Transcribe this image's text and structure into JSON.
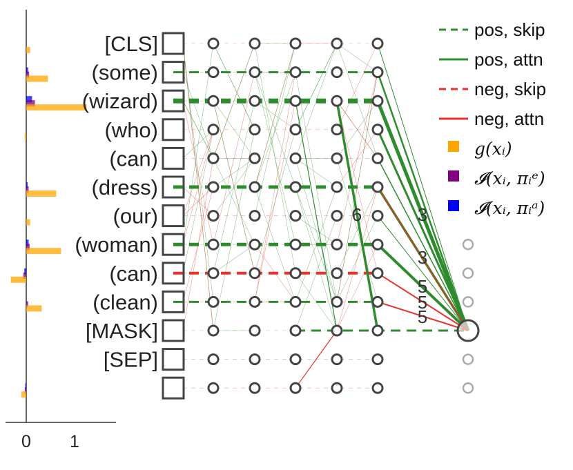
{
  "tokens": [
    "[CLS]",
    "(some)",
    "(wizard)",
    "(who)",
    "(can)",
    "(dress)",
    "(our)",
    "(woman)",
    "(can)",
    "(clean)",
    "[MASK]",
    "[SEP]",
    ""
  ],
  "bar_axis": {
    "ticks": [
      "0",
      "1"
    ]
  },
  "bars": [
    {
      "g": 0.08,
      "e": 0.0,
      "a": 0.0
    },
    {
      "g": 0.45,
      "e": 0.06,
      "a": 0.04
    },
    {
      "g": 1.25,
      "e": 0.18,
      "a": 0.12
    },
    {
      "g": -0.03,
      "e": 0.0,
      "a": 0.0
    },
    {
      "g": 0.0,
      "e": 0.0,
      "a": 0.0
    },
    {
      "g": 0.62,
      "e": 0.05,
      "a": 0.03
    },
    {
      "g": 0.08,
      "e": 0.0,
      "a": 0.0
    },
    {
      "g": 0.72,
      "e": 0.07,
      "a": 0.05
    },
    {
      "g": -0.32,
      "e": -0.06,
      "a": -0.04
    },
    {
      "g": 0.32,
      "e": 0.04,
      "a": 0.0
    },
    {
      "g": 0.0,
      "e": 0.0,
      "a": 0.0
    },
    {
      "g": 0.0,
      "e": 0.0,
      "a": 0.0
    },
    {
      "g": -0.1,
      "e": -0.03,
      "a": -0.02
    }
  ],
  "legend": [
    {
      "label": "pos, skip",
      "kind": "line-dashed",
      "color": "#2e8b2e"
    },
    {
      "label": "pos, attn",
      "kind": "line-solid",
      "color": "#2e8b2e"
    },
    {
      "label": "neg, skip",
      "kind": "line-dashed",
      "color": "#e8312a"
    },
    {
      "label": "neg, attn",
      "kind": "line-solid",
      "color": "#e8312a"
    },
    {
      "label": "g(xᵢ)",
      "kind": "square",
      "color": "#ffa500"
    },
    {
      "label": "𝓘(xᵢ, πᵢᵉ)",
      "kind": "square",
      "color": "#800080"
    },
    {
      "label": "𝓘(xᵢ, πᵢᵃ)",
      "kind": "square",
      "color": "#0000ff"
    }
  ],
  "edge_labels": [
    "6",
    "3",
    "3",
    "5",
    "5",
    "5"
  ],
  "skip_edges": [
    {
      "row": 1,
      "color": "#2e8b2e",
      "weight": 3
    },
    {
      "row": 2,
      "color": "#2e8b2e",
      "weight": 7
    },
    {
      "row": 5,
      "color": "#2e8b2e",
      "weight": 5
    },
    {
      "row": 7,
      "color": "#2e8b2e",
      "weight": 5
    },
    {
      "row": 8,
      "color": "#e8312a",
      "weight": 4
    },
    {
      "row": 9,
      "color": "#2e8b2e",
      "weight": 3
    },
    {
      "row": 10,
      "color": "#2e8b2e",
      "weight": 3
    }
  ],
  "colors": {
    "pos": "#2e8b2e",
    "neg": "#e8312a",
    "g": "#ffa500",
    "e": "#800080",
    "a": "#0000ff"
  }
}
